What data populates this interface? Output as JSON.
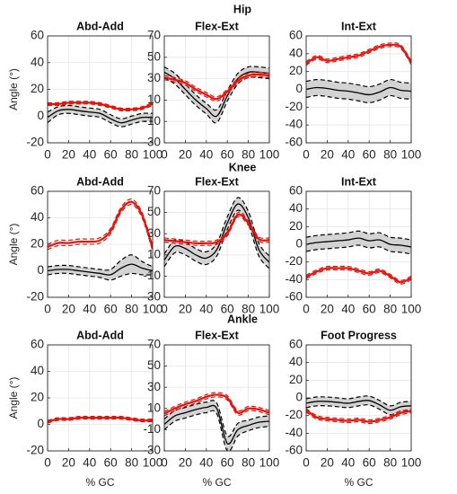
{
  "chart_data": {
    "type": "line",
    "rows": [
      {
        "title": "Hip",
        "panels": [
          {
            "title": "Abd-Add",
            "ylabel": "Angle (°)",
            "xlabel": "",
            "ylim": [
              -20,
              60
            ],
            "yticks": [
              -20,
              0,
              20,
              40,
              60
            ],
            "x": [
              0,
              10,
              20,
              30,
              40,
              50,
              60,
              70,
              80,
              90,
              100
            ],
            "norm_mean": [
              -1,
              4,
              5,
              4,
              3,
              2,
              -2,
              -5,
              -3,
              -1,
              -1
            ],
            "norm_sd": [
              4,
              3,
              3,
              3,
              3,
              3,
              3,
              3,
              3,
              3,
              3
            ],
            "subject": [
              9,
              9,
              10,
              10,
              10,
              9,
              7,
              5,
              5,
              6,
              9
            ],
            "subject_band": 1
          },
          {
            "title": "Flex-Ext",
            "ylabel": "",
            "xlabel": "",
            "ylim": [
              -30,
              70
            ],
            "yticks": [
              -30,
              -10,
              10,
              30,
              50,
              70
            ],
            "x": [
              0,
              10,
              20,
              30,
              40,
              50,
              60,
              70,
              80,
              90,
              100
            ],
            "norm_mean": [
              36,
              30,
              20,
              10,
              2,
              -5,
              14,
              30,
              36,
              36,
              35
            ],
            "norm_sd": [
              5,
              5,
              5,
              5,
              5,
              6,
              5,
              5,
              5,
              5,
              5
            ],
            "subject": [
              31,
              29,
              26,
              20,
              15,
              11,
              18,
              28,
              33,
              34,
              33
            ],
            "subject_band": 2
          },
          {
            "title": "Int-Ext",
            "ylabel": "",
            "xlabel": "",
            "ylim": [
              -60,
              60
            ],
            "yticks": [
              -60,
              -40,
              -20,
              0,
              20,
              40,
              60
            ],
            "x": [
              0,
              10,
              20,
              30,
              40,
              50,
              60,
              70,
              80,
              90,
              100
            ],
            "norm_mean": [
              0,
              2,
              1,
              -1,
              -2,
              -4,
              -6,
              -3,
              2,
              -1,
              -2
            ],
            "norm_sd": [
              9,
              9,
              9,
              9,
              9,
              9,
              9,
              9,
              9,
              9,
              9
            ],
            "subject": [
              29,
              36,
              32,
              34,
              36,
              38,
              43,
              48,
              50,
              48,
              30
            ],
            "subject_band": 2
          }
        ]
      },
      {
        "title": "Knee",
        "panels": [
          {
            "title": "Abd-Add",
            "ylabel": "Angle (°)",
            "xlabel": "",
            "ylim": [
              -20,
              60
            ],
            "yticks": [
              -20,
              0,
              20,
              40,
              60
            ],
            "x": [
              0,
              10,
              20,
              30,
              40,
              50,
              60,
              70,
              80,
              90,
              100
            ],
            "norm_mean": [
              0,
              1,
              1,
              0,
              -1,
              -2,
              -3,
              2,
              5,
              2,
              0
            ],
            "norm_sd": [
              3,
              3,
              3,
              3,
              3,
              3,
              4,
              6,
              7,
              5,
              3
            ],
            "subject": [
              18,
              21,
              21,
              22,
              22,
              23,
              30,
              46,
              52,
              42,
              17
            ],
            "subject_band": 2
          },
          {
            "title": "Flex-Ext",
            "ylabel": "",
            "xlabel": "",
            "ylim": [
              -30,
              70
            ],
            "yticks": [
              -30,
              -10,
              10,
              30,
              50,
              70
            ],
            "x": [
              0,
              10,
              20,
              30,
              40,
              50,
              60,
              70,
              80,
              90,
              100
            ],
            "norm_mean": [
              5,
              18,
              16,
              10,
              7,
              15,
              40,
              58,
              45,
              15,
              3
            ],
            "norm_sd": [
              6,
              6,
              6,
              6,
              6,
              6,
              6,
              6,
              6,
              6,
              6
            ],
            "subject": [
              24,
              23,
              22,
              21,
              21,
              22,
              30,
              48,
              40,
              25,
              24
            ],
            "subject_band": 2
          },
          {
            "title": "Int-Ext",
            "ylabel": "",
            "xlabel": "",
            "ylim": [
              -60,
              60
            ],
            "yticks": [
              -60,
              -40,
              -20,
              0,
              20,
              40,
              60
            ],
            "x": [
              0,
              10,
              20,
              30,
              40,
              50,
              60,
              70,
              80,
              90,
              100
            ],
            "norm_mean": [
              0,
              2,
              3,
              4,
              5,
              7,
              4,
              5,
              0,
              -1,
              -3
            ],
            "norm_sd": [
              8,
              8,
              8,
              8,
              8,
              8,
              8,
              8,
              8,
              8,
              8
            ],
            "subject": [
              -37,
              -31,
              -27,
              -27,
              -27,
              -30,
              -33,
              -30,
              -36,
              -43,
              -38
            ],
            "subject_band": 2
          }
        ]
      },
      {
        "title": "Ankle",
        "panels": [
          {
            "title": "Abd-Add",
            "ylabel": "Angle (°)",
            "xlabel": "% GC",
            "ylim": [
              -20,
              60
            ],
            "yticks": [
              -20,
              0,
              20,
              40,
              60
            ],
            "x": [
              0,
              10,
              20,
              30,
              40,
              50,
              60,
              70,
              80,
              90,
              100
            ],
            "norm_mean": null,
            "norm_sd": null,
            "subject": [
              2,
              4,
              4,
              5,
              5,
              5,
              5,
              5,
              4,
              3,
              3
            ],
            "subject_band": 1
          },
          {
            "title": "Flex-Ext",
            "ylabel": "",
            "xlabel": "% GC",
            "ylim": [
              -30,
              70
            ],
            "yticks": [
              -30,
              -10,
              10,
              30,
              50,
              70
            ],
            "x": [
              0,
              10,
              20,
              30,
              40,
              50,
              60,
              70,
              80,
              90,
              100
            ],
            "norm_mean": [
              -5,
              3,
              6,
              9,
              11,
              10,
              -23,
              -10,
              -6,
              -3,
              -2
            ],
            "norm_sd": [
              5,
              5,
              5,
              5,
              5,
              5,
              7,
              6,
              5,
              5,
              5
            ],
            "subject": [
              5,
              10,
              14,
              17,
              21,
              23,
              20,
              6,
              10,
              9,
              6
            ],
            "subject_band": 2
          },
          {
            "title": "Foot Progress",
            "ylabel": "",
            "xlabel": "% GC",
            "ylim": [
              -60,
              60
            ],
            "yticks": [
              -60,
              -40,
              -20,
              0,
              20,
              40,
              60
            ],
            "x": [
              0,
              10,
              20,
              30,
              40,
              50,
              60,
              70,
              80,
              90,
              100
            ],
            "norm_mean": [
              -6,
              -4,
              -4,
              -5,
              -6,
              -4,
              -3,
              -8,
              -14,
              -10,
              -9
            ],
            "norm_sd": [
              5,
              5,
              5,
              5,
              5,
              5,
              5,
              5,
              5,
              5,
              5
            ],
            "subject": [
              -14,
              -22,
              -24,
              -25,
              -26,
              -25,
              -27,
              -25,
              -22,
              -17,
              -15
            ],
            "subject_band": 2
          }
        ]
      }
    ],
    "xlim": [
      0,
      100
    ],
    "xticks": [
      0,
      20,
      40,
      60,
      80,
      100
    ],
    "grid": true,
    "colors": {
      "subject": "#e8120c",
      "norm_mean": "#000000",
      "norm_band": "#d3d3d3",
      "norm_sd_line": "#000000"
    }
  }
}
